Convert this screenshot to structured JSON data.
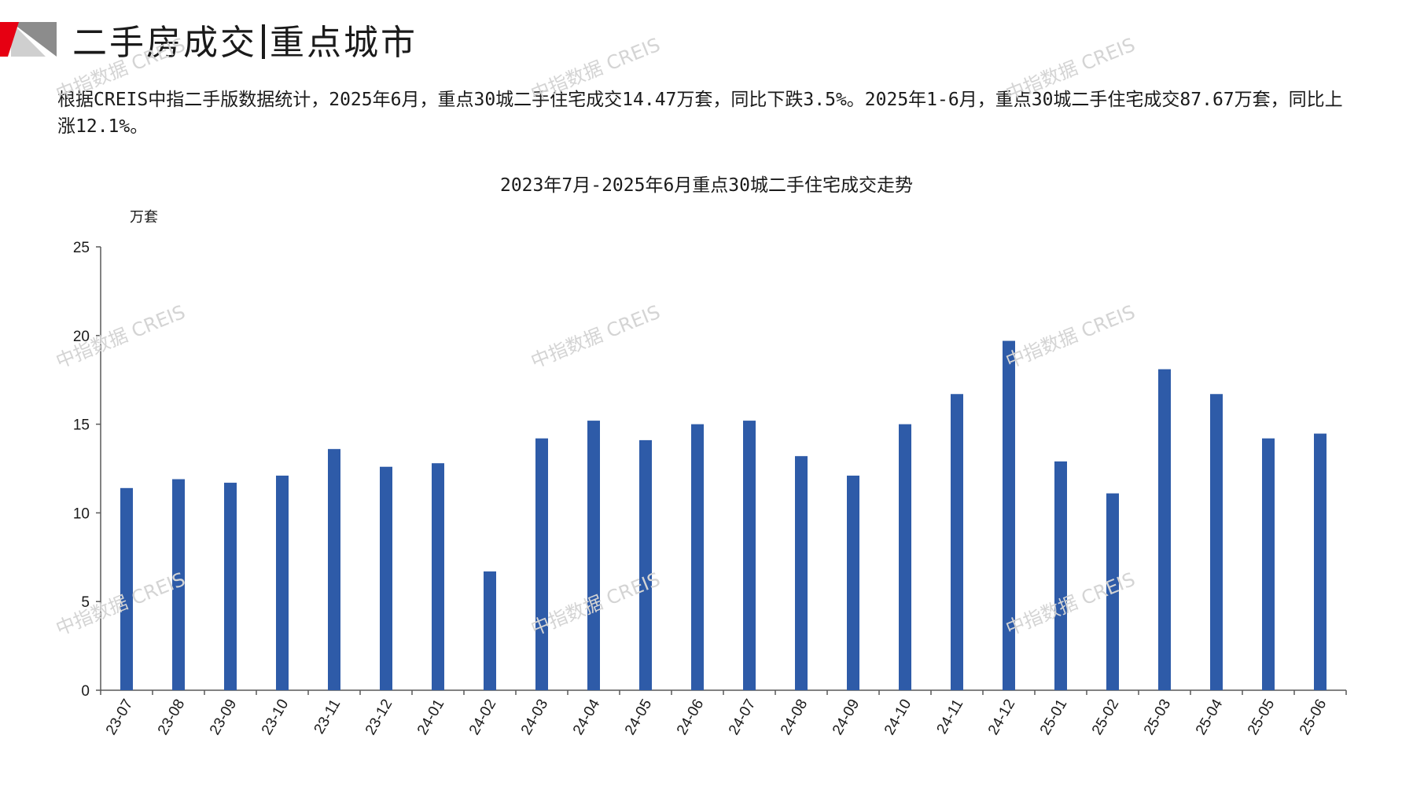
{
  "header": {
    "title_left": "二手房成交",
    "title_right": "重点城市"
  },
  "summary": {
    "text": "根据CREIS中指二手版数据统计，2025年6月，重点30城二手住宅成交14.47万套，同比下跌3.5%。2025年1-6月，重点30城二手住宅成交87.67万套，同比上涨12.1%。"
  },
  "watermark": {
    "text": "中指数据 CREIS"
  },
  "colors": {
    "bar": "#2E5BA8",
    "logo_red": "#E60012",
    "logo_gray": "#8C8C8C"
  },
  "chart_data": {
    "type": "bar",
    "title": "2023年7月-2025年6月重点30城二手住宅成交走势",
    "ylabel": "万套",
    "xlabel": "",
    "ylim": [
      0,
      25
    ],
    "yticks": [
      0,
      5,
      10,
      15,
      20,
      25
    ],
    "grid": false,
    "categories": [
      "23-07",
      "23-08",
      "23-09",
      "23-10",
      "23-11",
      "23-12",
      "24-01",
      "24-02",
      "24-03",
      "24-04",
      "24-05",
      "24-06",
      "24-07",
      "24-08",
      "24-09",
      "24-10",
      "24-11",
      "24-12",
      "25-01",
      "25-02",
      "25-03",
      "25-04",
      "25-05",
      "25-06"
    ],
    "values": [
      11.4,
      11.9,
      11.7,
      12.1,
      13.6,
      12.6,
      12.8,
      6.7,
      14.2,
      15.2,
      14.1,
      15.0,
      15.2,
      13.2,
      12.1,
      15.0,
      16.7,
      19.7,
      12.9,
      11.1,
      18.1,
      16.7,
      14.2,
      14.47
    ]
  }
}
